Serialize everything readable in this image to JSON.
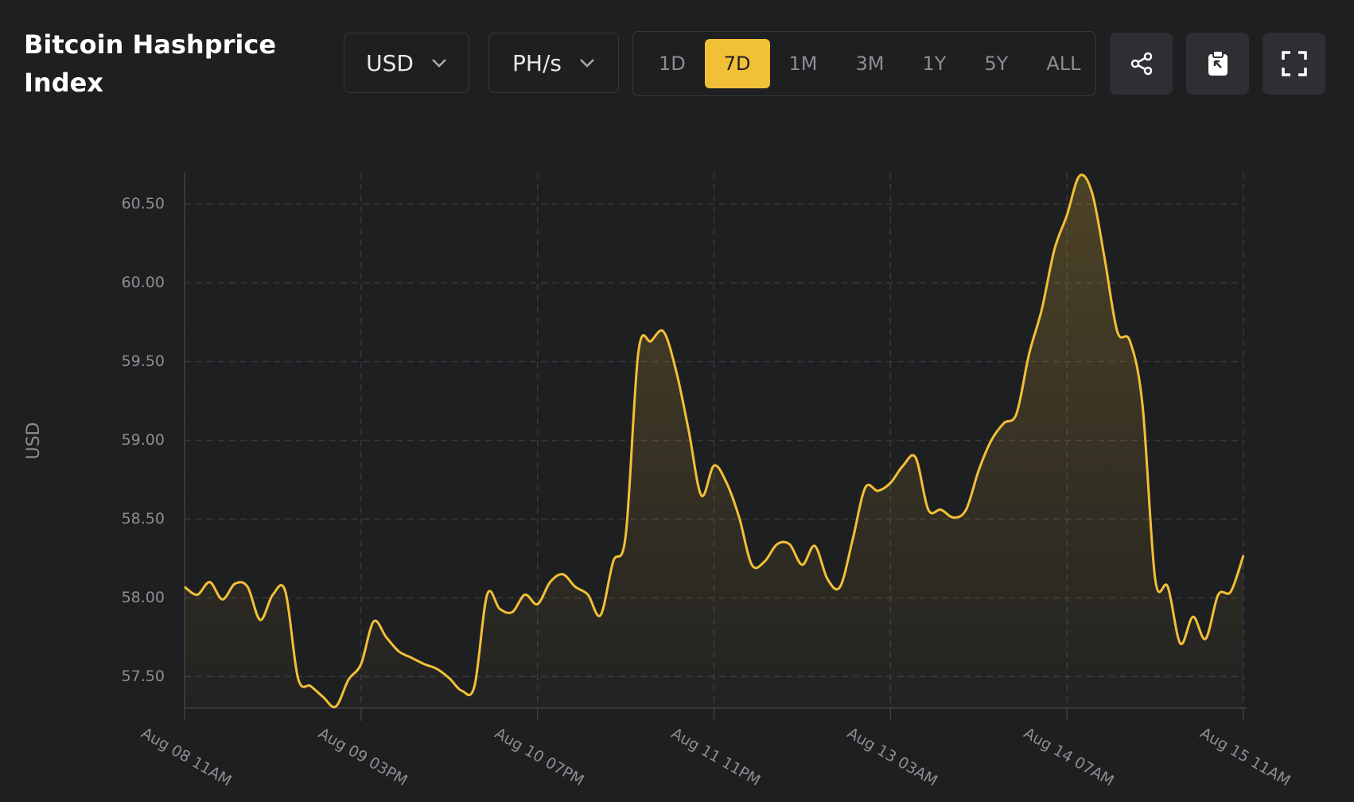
{
  "header": {
    "title": "Bitcoin Hashprice Index",
    "currency": "USD",
    "unit": "PH/s",
    "ranges": [
      "1D",
      "7D",
      "1M",
      "3M",
      "1Y",
      "5Y",
      "ALL"
    ],
    "active_range": "7D"
  },
  "chart_data": {
    "type": "line",
    "y_label": "USD",
    "color": "#f2c037",
    "grid": true,
    "categories": [
      "Aug 08 11AM",
      null,
      null,
      null,
      null,
      null,
      null,
      null,
      null,
      null,
      null,
      null,
      null,
      null,
      "Aug 09 03PM",
      null,
      null,
      null,
      null,
      null,
      null,
      null,
      null,
      null,
      null,
      null,
      null,
      null,
      "Aug 10 07PM",
      null,
      null,
      null,
      null,
      null,
      null,
      null,
      null,
      null,
      null,
      null,
      null,
      null,
      "Aug 11 11PM",
      null,
      null,
      null,
      null,
      null,
      null,
      null,
      null,
      null,
      null,
      null,
      null,
      null,
      "Aug 13 03AM",
      null,
      null,
      null,
      null,
      null,
      null,
      null,
      null,
      null,
      null,
      null,
      null,
      null,
      "Aug 14 07AM",
      null,
      null,
      null,
      null,
      null,
      null,
      null,
      null,
      null,
      null,
      null,
      null,
      null,
      "Aug 15 11AM"
    ],
    "values": [
      58.07,
      58.02,
      58.1,
      57.99,
      58.09,
      58.07,
      57.86,
      58.02,
      58.04,
      57.49,
      57.44,
      57.37,
      57.31,
      57.48,
      57.58,
      57.85,
      57.75,
      57.66,
      57.62,
      57.58,
      57.55,
      57.49,
      57.41,
      57.44,
      58.02,
      57.93,
      57.91,
      58.02,
      57.96,
      58.1,
      58.15,
      58.07,
      58.02,
      57.89,
      58.23,
      58.4,
      59.56,
      59.63,
      59.69,
      59.44,
      59.06,
      58.65,
      58.84,
      58.73,
      58.51,
      58.21,
      58.23,
      58.34,
      58.34,
      58.21,
      58.33,
      58.12,
      58.07,
      58.37,
      58.7,
      58.68,
      58.73,
      58.84,
      58.89,
      58.56,
      58.56,
      58.51,
      58.56,
      58.81,
      59.0,
      59.11,
      59.17,
      59.55,
      59.83,
      60.21,
      60.43,
      60.68,
      60.57,
      60.15,
      59.69,
      59.63,
      59.22,
      58.12,
      58.07,
      57.71,
      57.88,
      57.74,
      58.02,
      58.04,
      58.27
    ],
    "ylim": [
      57.3,
      60.7
    ],
    "yticks": [
      {
        "value": 57.5,
        "label": "57.50"
      },
      {
        "value": 58,
        "label": "58.00"
      },
      {
        "value": 58.5,
        "label": "58.50"
      },
      {
        "value": 59,
        "label": "59.00"
      },
      {
        "value": 59.5,
        "label": "59.50"
      },
      {
        "value": 60,
        "label": "60.00"
      },
      {
        "value": 60.5,
        "label": "60.50"
      }
    ]
  }
}
